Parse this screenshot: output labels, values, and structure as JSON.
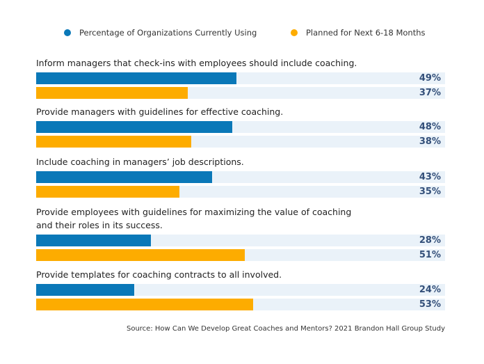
{
  "chart_data": {
    "type": "bar",
    "orientation": "horizontal",
    "categories": [
      "Inform managers that check-ins with employees should include coaching.",
      "Provide managers with guidelines for effective coaching.",
      "Include coaching in managers’ job descriptions.",
      "Provide employees with guidelines for maximizing the value of coaching and their roles in its success.",
      "Provide templates for coaching contracts to all involved."
    ],
    "category_lines": [
      [
        "Inform managers that check-ins with employees should include coaching."
      ],
      [
        "Provide managers with guidelines for effective coaching."
      ],
      [
        "Include coaching in managers’ job descriptions."
      ],
      [
        "Provide employees with guidelines for maximizing the value of coaching",
        "and their roles in its success."
      ],
      [
        "Provide templates for coaching contracts to all involved."
      ]
    ],
    "series": [
      {
        "name": "Percentage of Organizations Currently Using",
        "color": "#0a78b8",
        "values": [
          49,
          48,
          43,
          28,
          24
        ]
      },
      {
        "name": "Planned for Next 6-18 Months",
        "color": "#fdac00",
        "values": [
          37,
          38,
          35,
          51,
          53
        ]
      }
    ],
    "value_suffix": "%",
    "xlim": [
      0,
      100
    ],
    "track_color": "#eaf2f9",
    "legend": "top",
    "grid": false,
    "source": "Source: How Can We Develop Great Coaches and Mentors? 2021 Brandon Hall Group Study"
  }
}
